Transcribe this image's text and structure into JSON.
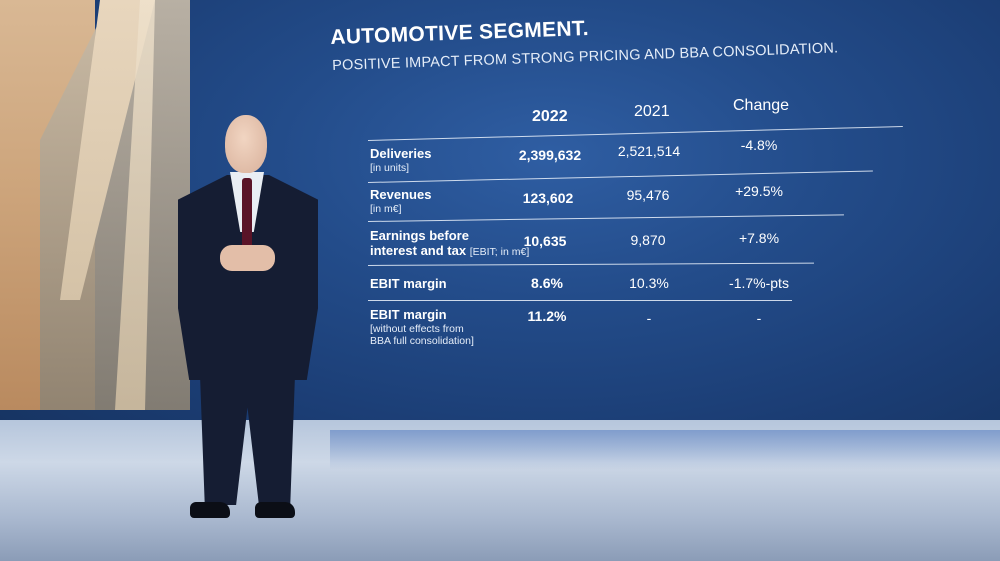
{
  "slide": {
    "title": "AUTOMOTIVE SEGMENT.",
    "subtitle": "POSITIVE IMPACT FROM STRONG PRICING AND BBA CONSOLIDATION."
  },
  "table": {
    "columns": [
      "2022",
      "2021",
      "Change"
    ],
    "rows": [
      {
        "label": "Deliveries",
        "unit": "[in units]",
        "v2022": "2,399,632",
        "v2021": "2,521,514",
        "change": "-4.8%"
      },
      {
        "label": "Revenues",
        "unit": "[in m€]",
        "v2022": "123,602",
        "v2021": "95,476",
        "change": "+29.5%"
      },
      {
        "label_line1": "Earnings before",
        "label_line2": "interest and tax",
        "unit": "[EBIT; in m€]",
        "v2022": "10,635",
        "v2021": "9,870",
        "change": "+7.8%"
      },
      {
        "label": "EBIT margin",
        "v2022": "8.6%",
        "v2021": "10.3%",
        "change": "-1.7%-pts"
      },
      {
        "label": "EBIT margin",
        "unit_line1": "[without effects from",
        "unit_line2": "BBA full consolidation]",
        "v2022": "11.2%",
        "v2021": "-",
        "change": "-"
      }
    ]
  }
}
